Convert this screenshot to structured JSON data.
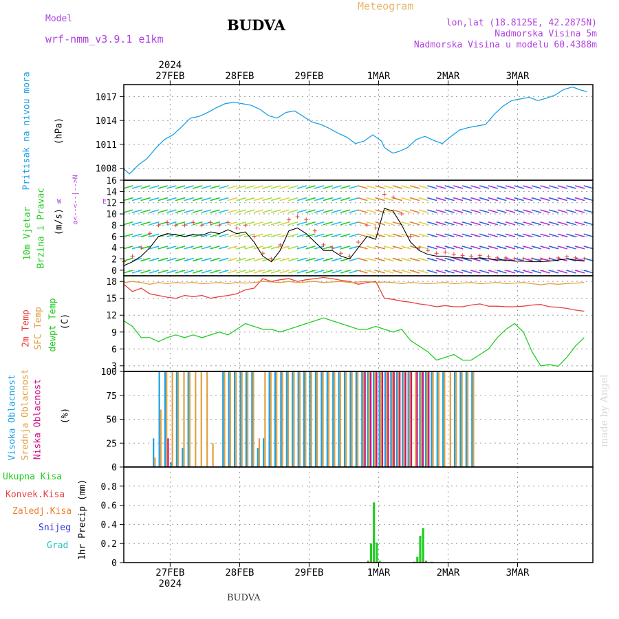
{
  "header": {
    "model_label": "Model",
    "model_name": "wrf-nmm_v3.9.1 e1km",
    "station": "BUDVA",
    "chart_title": "Meteogram",
    "lonlat": "lon,lat (18.8125E, 42.2875N)",
    "elevation": "Nadmorska Visina 5m",
    "model_elevation": "Nadmorska Visina u modelu 60.4388m",
    "footer_station": "BUDVA",
    "watermark": "made by Angel"
  },
  "colors": {
    "pressure": "#1aa0e6",
    "temp2m": "#e84040",
    "sfc_temp": "#e0a040",
    "dewpoint": "#22cc22",
    "wind_speed": "#000000",
    "wind_gust": "#e84040",
    "cloud_high": "#1aa0e6",
    "cloud_mid": "#e0a040",
    "cloud_low": "#d01080",
    "precip_total": "#22cc22",
    "precip_conv": "#e84040",
    "precip_frz": "#f08030",
    "snow": "#3030e0",
    "hail": "#20c0c0",
    "header_orange": "#e8b870",
    "header_purple": "#b040e0"
  },
  "axes": {
    "year": "2024",
    "day_labels": [
      "27FEB",
      "28FEB",
      "29FEB",
      "1MAR",
      "2MAR",
      "3MAR"
    ]
  },
  "panels": {
    "pressure": {
      "label": "Pritisak na nivou mora",
      "unit": "(hPa)"
    },
    "wind": {
      "label1": "10m Vjetar",
      "label2": "Brzina i Pravac",
      "unit": "(m/s)",
      "compass_n": "N",
      "compass_s": "S",
      "compass_e": "E",
      "compass_w": "W",
      "compass_row": "<--|-->",
      "compass_sym": "α<--"
    },
    "temp": {
      "label1": "2m Temp",
      "label2": "SFC Temp",
      "label3": "dewpt Temp",
      "unit": "(C)"
    },
    "cloud": {
      "label1": "Visoka Oblacnost",
      "label2": "Srednja Oblacnost",
      "label3": "Niska Oblacnost",
      "unit": "(%)"
    },
    "precip": {
      "label_total": "Ukupna Kisa",
      "label_conv": "Konvek.Kisa",
      "label_frz": "Zaledj.Kisa",
      "label_snow": "Snijeg",
      "label_hail": "Grad",
      "unit": "1hr Precip (mm)"
    }
  },
  "chart_data": [
    {
      "type": "line",
      "name": "pressure",
      "ylabel": "(hPa)",
      "ylim": [
        1006.5,
        1018.5
      ],
      "yticks": [
        1008,
        1011,
        1014,
        1017
      ],
      "x_hours": [
        0,
        2,
        5,
        8,
        11,
        14,
        17,
        20,
        23,
        26,
        29,
        32,
        35,
        38,
        41,
        44,
        47,
        50,
        53,
        56,
        59,
        62,
        65,
        68,
        71,
        74,
        77,
        80,
        83,
        86,
        89,
        90,
        92,
        93,
        95,
        98,
        101,
        104,
        107,
        110,
        113,
        116,
        119,
        122,
        125,
        128,
        131,
        134,
        137,
        140,
        143,
        146,
        149,
        152,
        155,
        158,
        160
      ],
      "series": [
        {
          "values": [
            1007.9,
            1007.3,
            1008.4,
            1009.2,
            1010.5,
            1011.6,
            1012.2,
            1013.2,
            1014.3,
            1014.5,
            1015.0,
            1015.6,
            1016.1,
            1016.3,
            1016.1,
            1015.9,
            1015.4,
            1014.6,
            1014.3,
            1015.0,
            1015.2,
            1014.5,
            1013.8,
            1013.5,
            1013.0,
            1012.4,
            1011.9,
            1011.1,
            1011.4,
            1012.2,
            1011.4,
            1010.6,
            1010.1,
            1009.9,
            1010.1,
            1010.6,
            1011.6,
            1012.0,
            1011.5,
            1011.1,
            1012.0,
            1012.8,
            1013.1,
            1013.3,
            1013.5,
            1014.8,
            1015.8,
            1016.5,
            1016.7,
            1016.9,
            1016.5,
            1016.8,
            1017.2,
            1017.9,
            1018.2,
            1017.8,
            1017.6
          ]
        }
      ]
    },
    {
      "type": "line",
      "name": "wind",
      "ylabel": "(m/s)",
      "ylim": [
        -1,
        16
      ],
      "yticks": [
        0,
        2,
        4,
        6,
        8,
        10,
        12,
        14,
        16
      ],
      "x_hours": [
        0,
        3,
        6,
        9,
        12,
        15,
        18,
        21,
        24,
        27,
        30,
        33,
        36,
        39,
        42,
        45,
        48,
        51,
        54,
        57,
        60,
        63,
        66,
        69,
        72,
        75,
        78,
        81,
        84,
        87,
        90,
        93,
        96,
        99,
        102,
        105,
        108,
        111,
        114,
        117,
        120,
        123,
        126,
        129,
        132,
        135,
        138,
        141,
        144,
        147,
        150,
        153,
        156,
        159
      ],
      "series": [
        {
          "values": [
            0.8,
            1.5,
            2.5,
            4.0,
            6.0,
            6.5,
            6.3,
            6.0,
            6.3,
            6.2,
            6.8,
            6.5,
            7.2,
            6.5,
            6.8,
            5.0,
            2.5,
            1.5,
            3.5,
            7.0,
            7.5,
            6.5,
            5.0,
            3.5,
            3.5,
            2.5,
            2.0,
            4.0,
            6.0,
            5.5,
            11.0,
            10.5,
            8.0,
            5.0,
            3.5,
            2.8,
            2.5,
            2.5,
            2.2,
            2.2,
            2.0,
            2.2,
            2.0,
            1.8,
            1.8,
            1.6,
            1.6,
            1.5,
            1.5,
            1.6,
            1.8,
            2.0,
            1.8,
            1.6
          ]
        },
        {
          "values": [
            1.5,
            2.5,
            4.0,
            6.5,
            8.0,
            8.5,
            8.0,
            8.0,
            8.5,
            8.0,
            8.5,
            8.0,
            8.5,
            7.5,
            8.0,
            6.0,
            3.0,
            2.0,
            4.5,
            9.0,
            9.5,
            9.0,
            7.0,
            4.5,
            4.0,
            3.0,
            2.5,
            5.0,
            8.0,
            7.5,
            13.5,
            13.0,
            10.0,
            6.0,
            4.0,
            3.5,
            3.0,
            3.2,
            2.8,
            2.6,
            2.5,
            2.6,
            2.4,
            2.2,
            2.2,
            2.0,
            2.0,
            2.0,
            1.9,
            2.0,
            2.2,
            2.4,
            2.2,
            2.0
          ]
        }
      ]
    },
    {
      "type": "line",
      "name": "temperature",
      "ylabel": "(C)",
      "ylim": [
        2,
        19
      ],
      "yticks": [
        3,
        6,
        9,
        12,
        15,
        18
      ],
      "x_hours": [
        0,
        3,
        6,
        9,
        12,
        15,
        18,
        21,
        24,
        27,
        30,
        33,
        36,
        39,
        42,
        45,
        48,
        51,
        54,
        57,
        60,
        63,
        66,
        69,
        72,
        75,
        78,
        81,
        84,
        87,
        90,
        93,
        96,
        99,
        102,
        105,
        108,
        111,
        114,
        117,
        120,
        123,
        126,
        129,
        132,
        135,
        138,
        141,
        144,
        147,
        150,
        153,
        156,
        159
      ],
      "series": [
        {
          "values": [
            17.5,
            16.2,
            16.8,
            15.8,
            15.5,
            15.2,
            15.0,
            15.5,
            15.3,
            15.5,
            15.0,
            15.3,
            15.5,
            15.8,
            16.5,
            16.8,
            18.5,
            18.0,
            18.3,
            18.5,
            18.0,
            18.3,
            18.5,
            18.7,
            18.5,
            18.2,
            18.0,
            17.5,
            17.8,
            18.0,
            15.0,
            14.8,
            14.5,
            14.3,
            14.0,
            13.8,
            13.5,
            13.7,
            13.5,
            13.5,
            13.8,
            14.0,
            13.6,
            13.6,
            13.5,
            13.5,
            13.6,
            13.8,
            13.9,
            13.5,
            13.4,
            13.2,
            12.9,
            12.7
          ]
        },
        {
          "values": [
            17.8,
            18.0,
            17.8,
            17.5,
            17.8,
            17.6,
            17.8,
            17.7,
            17.8,
            17.6,
            17.7,
            17.8,
            17.6,
            17.8,
            17.7,
            17.8,
            18.0,
            17.9,
            17.8,
            18.0,
            17.8,
            17.9,
            18.0,
            17.8,
            17.9,
            18.0,
            17.8,
            17.9,
            18.0,
            17.8,
            17.9,
            17.8,
            17.6,
            17.8,
            17.7,
            17.6,
            17.7,
            17.8,
            17.6,
            17.7,
            17.8,
            17.6,
            17.7,
            17.8,
            17.6,
            17.7,
            17.8,
            17.6,
            17.4,
            17.6,
            17.5,
            17.6,
            17.7,
            17.8
          ]
        },
        {
          "values": [
            11.0,
            10.0,
            8.0,
            8.0,
            7.3,
            8.0,
            8.5,
            8.0,
            8.5,
            8.0,
            8.5,
            9.0,
            8.5,
            9.5,
            10.5,
            10.0,
            9.5,
            9.5,
            9.0,
            9.5,
            10.0,
            10.5,
            11.0,
            11.5,
            11.0,
            10.5,
            10.0,
            9.5,
            9.5,
            10.0,
            9.5,
            9.0,
            9.5,
            7.5,
            6.5,
            5.5,
            4.0,
            4.5,
            5.0,
            4.0,
            4.0,
            5.0,
            6.0,
            8.0,
            9.5,
            10.5,
            9.0,
            5.5,
            3.0,
            3.2,
            2.9,
            4.5,
            6.5,
            8.0
          ]
        }
      ]
    },
    {
      "type": "bar",
      "name": "cloud_cover",
      "ylabel": "(%)",
      "ylim": [
        0,
        100
      ],
      "yticks": [
        0,
        25,
        50,
        75,
        100
      ],
      "x_hours": [
        10,
        12,
        14,
        16,
        18,
        20,
        22,
        24,
        26,
        28,
        30,
        34,
        36,
        38,
        40,
        42,
        44,
        46,
        48,
        50,
        52,
        54,
        56,
        58,
        60,
        62,
        64,
        66,
        68,
        70,
        72,
        74,
        76,
        78,
        80,
        82,
        84,
        86,
        88,
        90,
        92,
        94,
        96,
        98,
        100,
        102,
        104,
        106,
        108,
        110,
        112,
        114,
        116,
        118,
        120
      ],
      "series": [
        {
          "name": "Visoka Oblacnost",
          "values": [
            30,
            100,
            100,
            5,
            100,
            20,
            100,
            0,
            0,
            0,
            0,
            100,
            100,
            100,
            100,
            100,
            100,
            20,
            30,
            100,
            100,
            100,
            100,
            100,
            100,
            100,
            100,
            100,
            100,
            100,
            100,
            100,
            100,
            100,
            100,
            100,
            100,
            100,
            100,
            100,
            100,
            100,
            100,
            100,
            0,
            100,
            100,
            100,
            100,
            100,
            0,
            100,
            100,
            100,
            100
          ]
        },
        {
          "name": "Srednja Oblacnost",
          "values": [
            10,
            60,
            100,
            100,
            100,
            100,
            100,
            100,
            100,
            100,
            25,
            100,
            100,
            100,
            100,
            100,
            100,
            30,
            100,
            100,
            100,
            100,
            100,
            100,
            100,
            100,
            100,
            100,
            100,
            100,
            100,
            100,
            100,
            100,
            100,
            100,
            100,
            100,
            100,
            100,
            100,
            100,
            100,
            100,
            100,
            100,
            100,
            100,
            100,
            100,
            100,
            100,
            100,
            100,
            100
          ]
        },
        {
          "name": "Niska Oblacnost",
          "values": [
            0,
            0,
            30,
            0,
            0,
            0,
            0,
            0,
            0,
            0,
            0,
            0,
            0,
            0,
            0,
            0,
            0,
            0,
            0,
            0,
            0,
            0,
            0,
            0,
            0,
            0,
            0,
            0,
            0,
            0,
            0,
            0,
            0,
            0,
            0,
            100,
            100,
            100,
            100,
            100,
            100,
            100,
            100,
            100,
            100,
            100,
            100,
            0,
            0,
            0,
            0,
            0,
            0,
            0,
            0
          ]
        }
      ]
    },
    {
      "type": "bar",
      "name": "precipitation",
      "ylabel": "1hr Precip (mm)",
      "ylim": [
        0,
        1.0
      ],
      "yticks": [
        0,
        0.2,
        0.4,
        0.6,
        0.8
      ],
      "x_hours": [
        84,
        85,
        86,
        87,
        88,
        100,
        101,
        102,
        103,
        104,
        106
      ],
      "series": [
        {
          "name": "Ukupna Kisa",
          "values": [
            0.02,
            0.2,
            0.63,
            0.21,
            0.02,
            0.01,
            0.06,
            0.28,
            0.36,
            0.02,
            0.01
          ]
        },
        {
          "name": "Konvek.Kisa",
          "values": [
            0.01,
            0.01,
            0.01,
            0.01,
            0.0,
            0.0,
            0.0,
            0.01,
            0.01,
            0.01,
            0.0
          ]
        }
      ]
    }
  ]
}
